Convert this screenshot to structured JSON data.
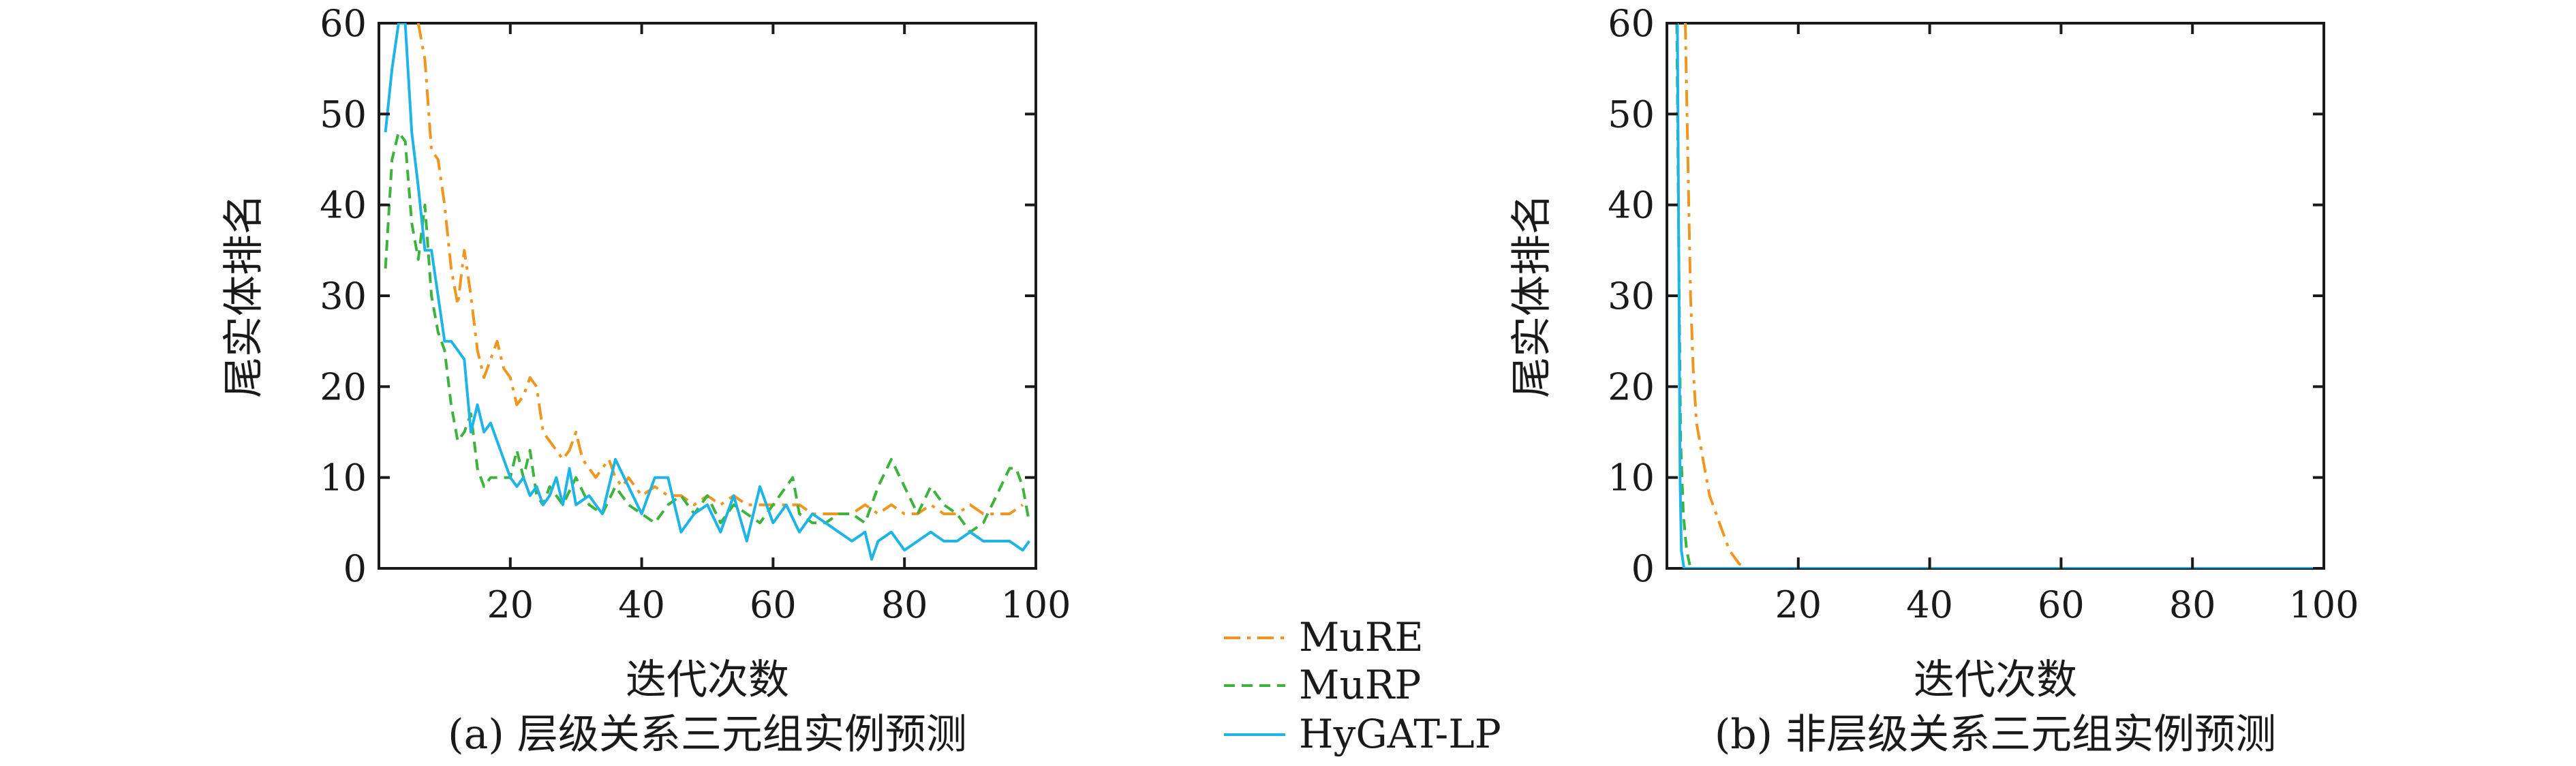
{
  "chart_data": [
    {
      "type": "line",
      "caption": "(a) 层级关系三元组实例预测",
      "xlabel": "迭代次数",
      "ylabel": "尾实体排名",
      "xlim": [
        0,
        100
      ],
      "ylim": [
        0,
        60
      ],
      "xticks": [
        20,
        40,
        60,
        80,
        100
      ],
      "yticks": [
        0,
        10,
        20,
        30,
        40,
        50,
        60
      ],
      "grid": false,
      "series": [
        {
          "name": "MuRE",
          "color": "#f0961e",
          "dash": "dashdot",
          "points": [
            [
              6,
              60
            ],
            [
              7,
              56
            ],
            [
              8,
              46
            ],
            [
              9,
              45
            ],
            [
              10,
              40
            ],
            [
              11,
              33
            ],
            [
              12,
              29
            ],
            [
              13,
              35
            ],
            [
              14,
              30
            ],
            [
              15,
              24
            ],
            [
              16,
              21
            ],
            [
              17,
              23
            ],
            [
              18,
              25
            ],
            [
              19,
              22
            ],
            [
              20,
              21
            ],
            [
              21,
              18
            ],
            [
              22,
              19
            ],
            [
              23,
              21
            ],
            [
              24,
              20
            ],
            [
              25,
              15
            ],
            [
              26,
              14
            ],
            [
              27,
              13
            ],
            [
              28,
              12
            ],
            [
              29,
              13
            ],
            [
              30,
              15
            ],
            [
              31,
              12
            ],
            [
              32,
              11
            ],
            [
              33,
              10
            ],
            [
              34,
              11
            ],
            [
              35,
              12
            ],
            [
              36,
              10
            ],
            [
              37,
              9
            ],
            [
              38,
              10
            ],
            [
              39,
              9
            ],
            [
              40,
              8
            ],
            [
              42,
              9
            ],
            [
              44,
              8
            ],
            [
              46,
              8
            ],
            [
              48,
              7
            ],
            [
              50,
              8
            ],
            [
              52,
              7
            ],
            [
              54,
              8
            ],
            [
              56,
              7
            ],
            [
              58,
              7
            ],
            [
              60,
              7
            ],
            [
              62,
              7
            ],
            [
              64,
              7
            ],
            [
              66,
              6
            ],
            [
              68,
              6
            ],
            [
              70,
              6
            ],
            [
              72,
              6
            ],
            [
              74,
              7
            ],
            [
              76,
              6
            ],
            [
              78,
              7
            ],
            [
              80,
              6
            ],
            [
              82,
              6
            ],
            [
              84,
              7
            ],
            [
              86,
              6
            ],
            [
              88,
              6
            ],
            [
              90,
              7
            ],
            [
              92,
              6
            ],
            [
              94,
              6
            ],
            [
              96,
              6
            ],
            [
              98,
              7
            ]
          ]
        },
        {
          "name": "MuRP",
          "color": "#3cb43c",
          "dash": "dashed",
          "points": [
            [
              1,
              33
            ],
            [
              2,
              45
            ],
            [
              3,
              48
            ],
            [
              4,
              47
            ],
            [
              5,
              38
            ],
            [
              6,
              34
            ],
            [
              7,
              40
            ],
            [
              8,
              30
            ],
            [
              9,
              26
            ],
            [
              10,
              24
            ],
            [
              11,
              18
            ],
            [
              12,
              14
            ],
            [
              13,
              15
            ],
            [
              14,
              17
            ],
            [
              15,
              11
            ],
            [
              16,
              9
            ],
            [
              17,
              10
            ],
            [
              18,
              10
            ],
            [
              19,
              10
            ],
            [
              20,
              10
            ],
            [
              21,
              13
            ],
            [
              22,
              10
            ],
            [
              23,
              13
            ],
            [
              24,
              8
            ],
            [
              25,
              7
            ],
            [
              26,
              9
            ],
            [
              27,
              8
            ],
            [
              28,
              7
            ],
            [
              30,
              10
            ],
            [
              32,
              7
            ],
            [
              34,
              6
            ],
            [
              36,
              9
            ],
            [
              38,
              7
            ],
            [
              40,
              6
            ],
            [
              42,
              5
            ],
            [
              44,
              7
            ],
            [
              46,
              8
            ],
            [
              48,
              6
            ],
            [
              50,
              8
            ],
            [
              52,
              5
            ],
            [
              54,
              7
            ],
            [
              56,
              6
            ],
            [
              58,
              5
            ],
            [
              60,
              7
            ],
            [
              62,
              9
            ],
            [
              63,
              10
            ],
            [
              64,
              6
            ],
            [
              66,
              5
            ],
            [
              68,
              5
            ],
            [
              70,
              6
            ],
            [
              72,
              6
            ],
            [
              74,
              5
            ],
            [
              76,
              9
            ],
            [
              78,
              12
            ],
            [
              80,
              9
            ],
            [
              82,
              6
            ],
            [
              84,
              9
            ],
            [
              86,
              7
            ],
            [
              88,
              6
            ],
            [
              90,
              4
            ],
            [
              92,
              5
            ],
            [
              94,
              8
            ],
            [
              96,
              11
            ],
            [
              97,
              11
            ],
            [
              98,
              9
            ],
            [
              99,
              5
            ]
          ]
        },
        {
          "name": "HyGAT-LP",
          "color": "#1eb4e6",
          "dash": "solid",
          "points": [
            [
              1,
              48
            ],
            [
              2,
              55
            ],
            [
              3,
              60
            ],
            [
              4,
              60
            ],
            [
              5,
              48
            ],
            [
              6,
              42
            ],
            [
              7,
              35
            ],
            [
              8,
              35
            ],
            [
              9,
              30
            ],
            [
              10,
              25
            ],
            [
              11,
              25
            ],
            [
              12,
              24
            ],
            [
              13,
              23
            ],
            [
              14,
              15
            ],
            [
              15,
              18
            ],
            [
              16,
              15
            ],
            [
              17,
              16
            ],
            [
              18,
              14
            ],
            [
              19,
              12
            ],
            [
              20,
              10
            ],
            [
              21,
              9
            ],
            [
              22,
              10
            ],
            [
              23,
              8
            ],
            [
              24,
              9
            ],
            [
              25,
              7
            ],
            [
              26,
              8
            ],
            [
              27,
              10
            ],
            [
              28,
              7
            ],
            [
              29,
              11
            ],
            [
              30,
              7
            ],
            [
              32,
              8
            ],
            [
              34,
              6
            ],
            [
              36,
              12
            ],
            [
              38,
              9
            ],
            [
              40,
              6
            ],
            [
              42,
              10
            ],
            [
              44,
              10
            ],
            [
              46,
              4
            ],
            [
              48,
              6
            ],
            [
              50,
              7
            ],
            [
              52,
              4
            ],
            [
              54,
              8
            ],
            [
              56,
              3
            ],
            [
              58,
              9
            ],
            [
              60,
              5
            ],
            [
              62,
              7
            ],
            [
              64,
              4
            ],
            [
              66,
              6
            ],
            [
              68,
              5
            ],
            [
              70,
              4
            ],
            [
              72,
              3
            ],
            [
              74,
              4
            ],
            [
              75,
              1
            ],
            [
              76,
              3
            ],
            [
              78,
              4
            ],
            [
              80,
              2
            ],
            [
              82,
              3
            ],
            [
              84,
              4
            ],
            [
              86,
              3
            ],
            [
              88,
              3
            ],
            [
              90,
              4
            ],
            [
              92,
              3
            ],
            [
              94,
              3
            ],
            [
              96,
              3
            ],
            [
              98,
              2
            ],
            [
              99,
              3
            ]
          ]
        }
      ]
    },
    {
      "type": "line",
      "caption": "(b) 非层级关系三元组实例预测",
      "xlabel": "迭代次数",
      "ylabel": "尾实体排名",
      "xlim": [
        0,
        100
      ],
      "ylim": [
        0,
        60
      ],
      "xticks": [
        20,
        40,
        60,
        80,
        100
      ],
      "yticks": [
        0,
        10,
        20,
        30,
        40,
        50,
        60
      ],
      "grid": false,
      "series": [
        {
          "name": "MuRE",
          "color": "#f0961e",
          "dash": "dashdot",
          "points": [
            [
              2.8,
              60
            ],
            [
              3.2,
              45
            ],
            [
              3.6,
              30
            ],
            [
              4,
              22
            ],
            [
              4.5,
              16
            ],
            [
              5.5,
              12
            ],
            [
              6.5,
              8
            ],
            [
              8,
              5
            ],
            [
              9.5,
              2
            ],
            [
              11,
              0.5
            ],
            [
              12,
              0
            ],
            [
              100,
              0
            ]
          ]
        },
        {
          "name": "MuRP",
          "color": "#3cb43c",
          "dash": "dashed",
          "points": [
            [
              1.5,
              60
            ],
            [
              1.8,
              35
            ],
            [
              2.1,
              14
            ],
            [
              2.5,
              6
            ],
            [
              3,
              2
            ],
            [
              3.6,
              0
            ],
            [
              100,
              0
            ]
          ]
        },
        {
          "name": "HyGAT-LP",
          "color": "#1eb4e6",
          "dash": "solid",
          "points": [
            [
              1.6,
              60
            ],
            [
              1.8,
              35
            ],
            [
              2.0,
              10
            ],
            [
              2.2,
              2
            ],
            [
              2.6,
              0
            ],
            [
              100,
              0
            ]
          ]
        }
      ]
    }
  ],
  "legend": {
    "placement": "bottom-center",
    "items": [
      {
        "label": "MuRE",
        "color": "#f0961e",
        "dash": "dashdot"
      },
      {
        "label": "MuRP",
        "color": "#3cb43c",
        "dash": "dashed"
      },
      {
        "label": "HyGAT-LP",
        "color": "#1eb4e6",
        "dash": "solid"
      }
    ]
  }
}
